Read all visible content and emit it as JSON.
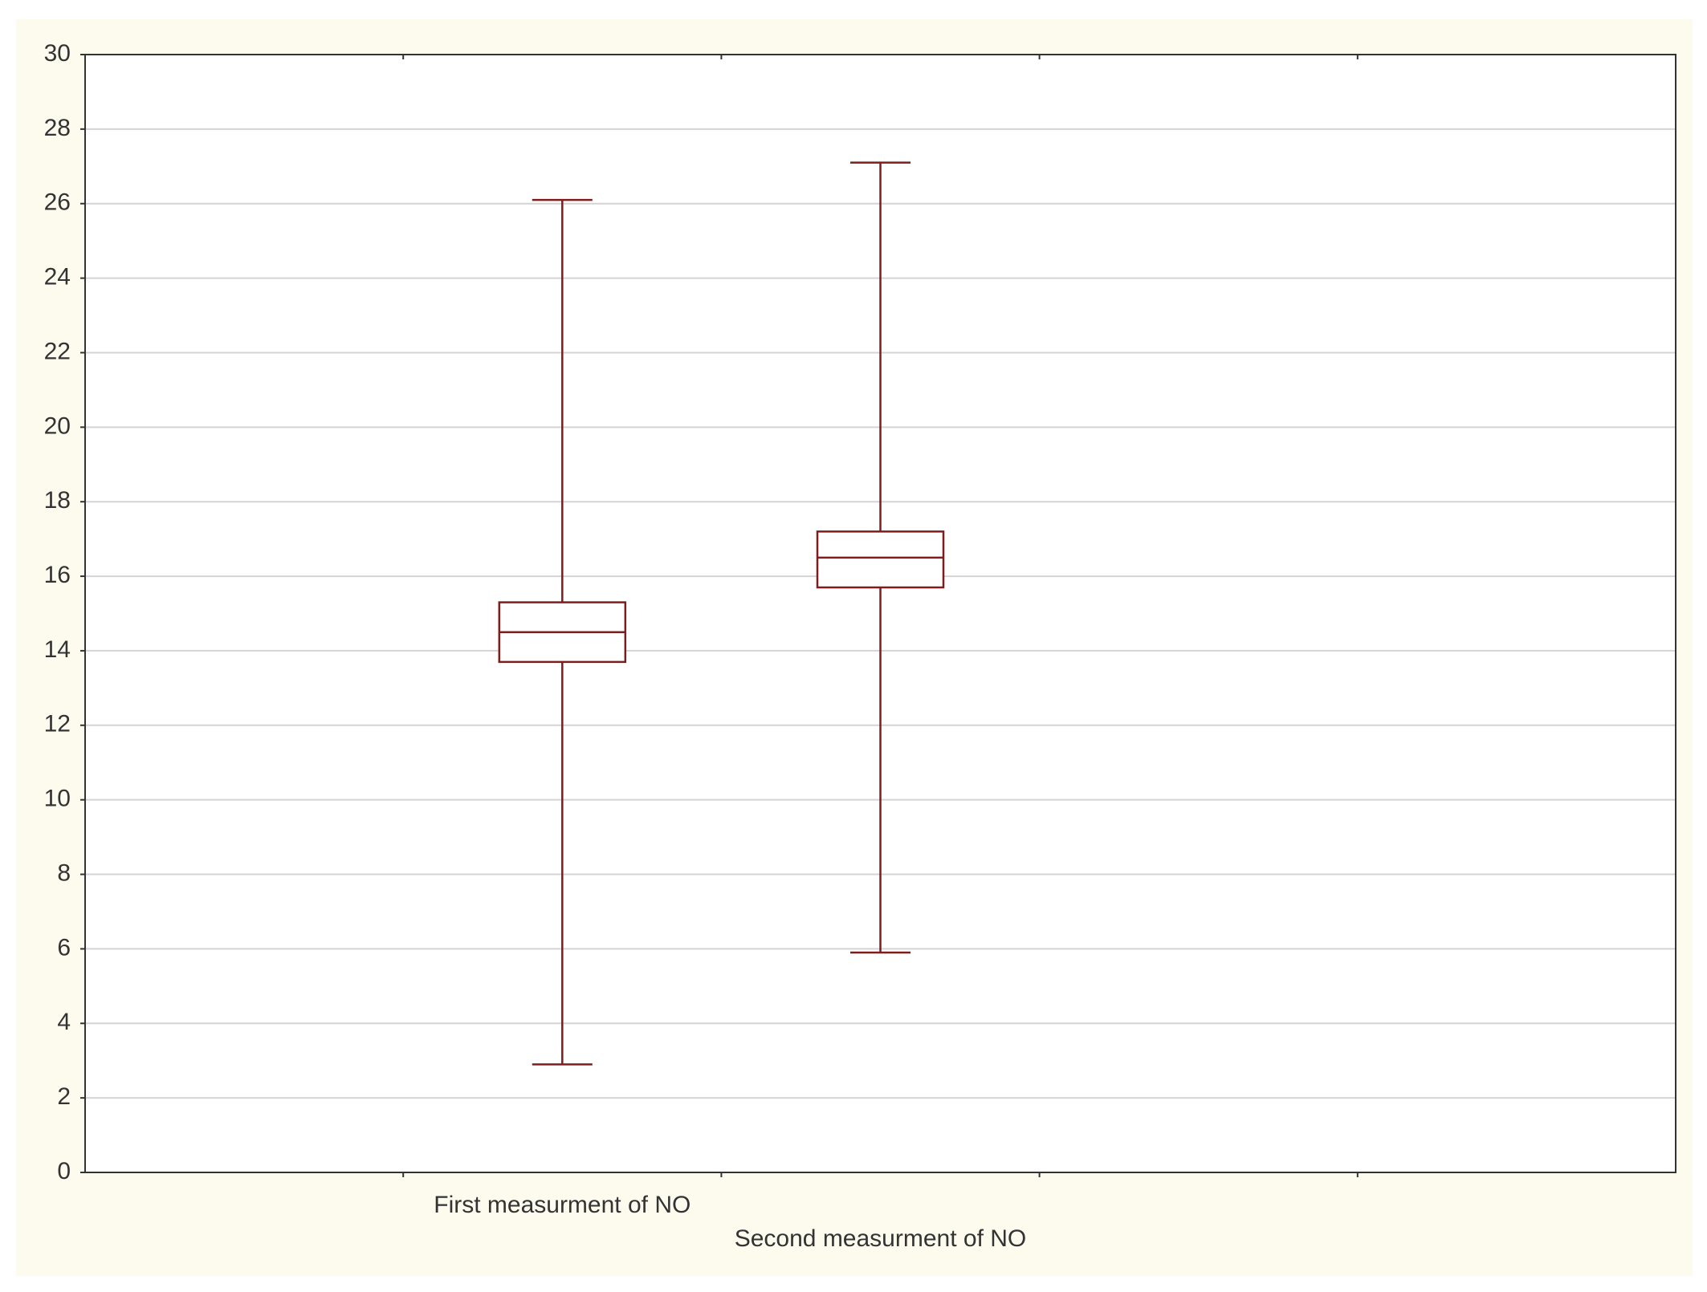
{
  "chart_data": {
    "type": "box",
    "categories": [
      null,
      "First measurment of NO",
      "Second measurment of NO",
      null,
      null
    ],
    "boxes": [
      null,
      {
        "min": 2.9,
        "q1": 13.7,
        "median": 14.5,
        "q3": 15.3,
        "max": 26.1
      },
      {
        "min": 5.9,
        "q1": 15.7,
        "median": 16.5,
        "q3": 17.2,
        "max": 27.1
      },
      null,
      null
    ],
    "color": "#7f1d1d",
    "ylim": [
      0,
      30
    ],
    "yticks": [
      0,
      2,
      4,
      6,
      8,
      10,
      12,
      14,
      16,
      18,
      20,
      22,
      24,
      26,
      28,
      30
    ],
    "grid": true
  }
}
